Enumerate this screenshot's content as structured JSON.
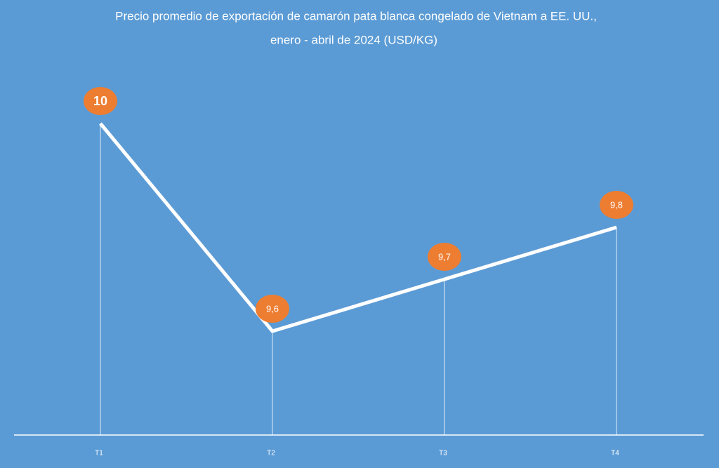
{
  "chart_data": {
    "type": "line",
    "title": "Precio promedio de exportación de camarón pata blanca congelado de Vietnam a EE. UU.,",
    "subtitle": "enero - abril de 2024 (USD/KG)",
    "categories": [
      "T1",
      "T2",
      "T3",
      "T4"
    ],
    "values": [
      10,
      9.6,
      9.7,
      9.8
    ],
    "value_labels": [
      "10",
      "9,6",
      "9,7",
      "9,8"
    ],
    "color": "#ffffff",
    "marker_color": "#ed7d31",
    "ylim": [
      9.4,
      10.2
    ]
  }
}
